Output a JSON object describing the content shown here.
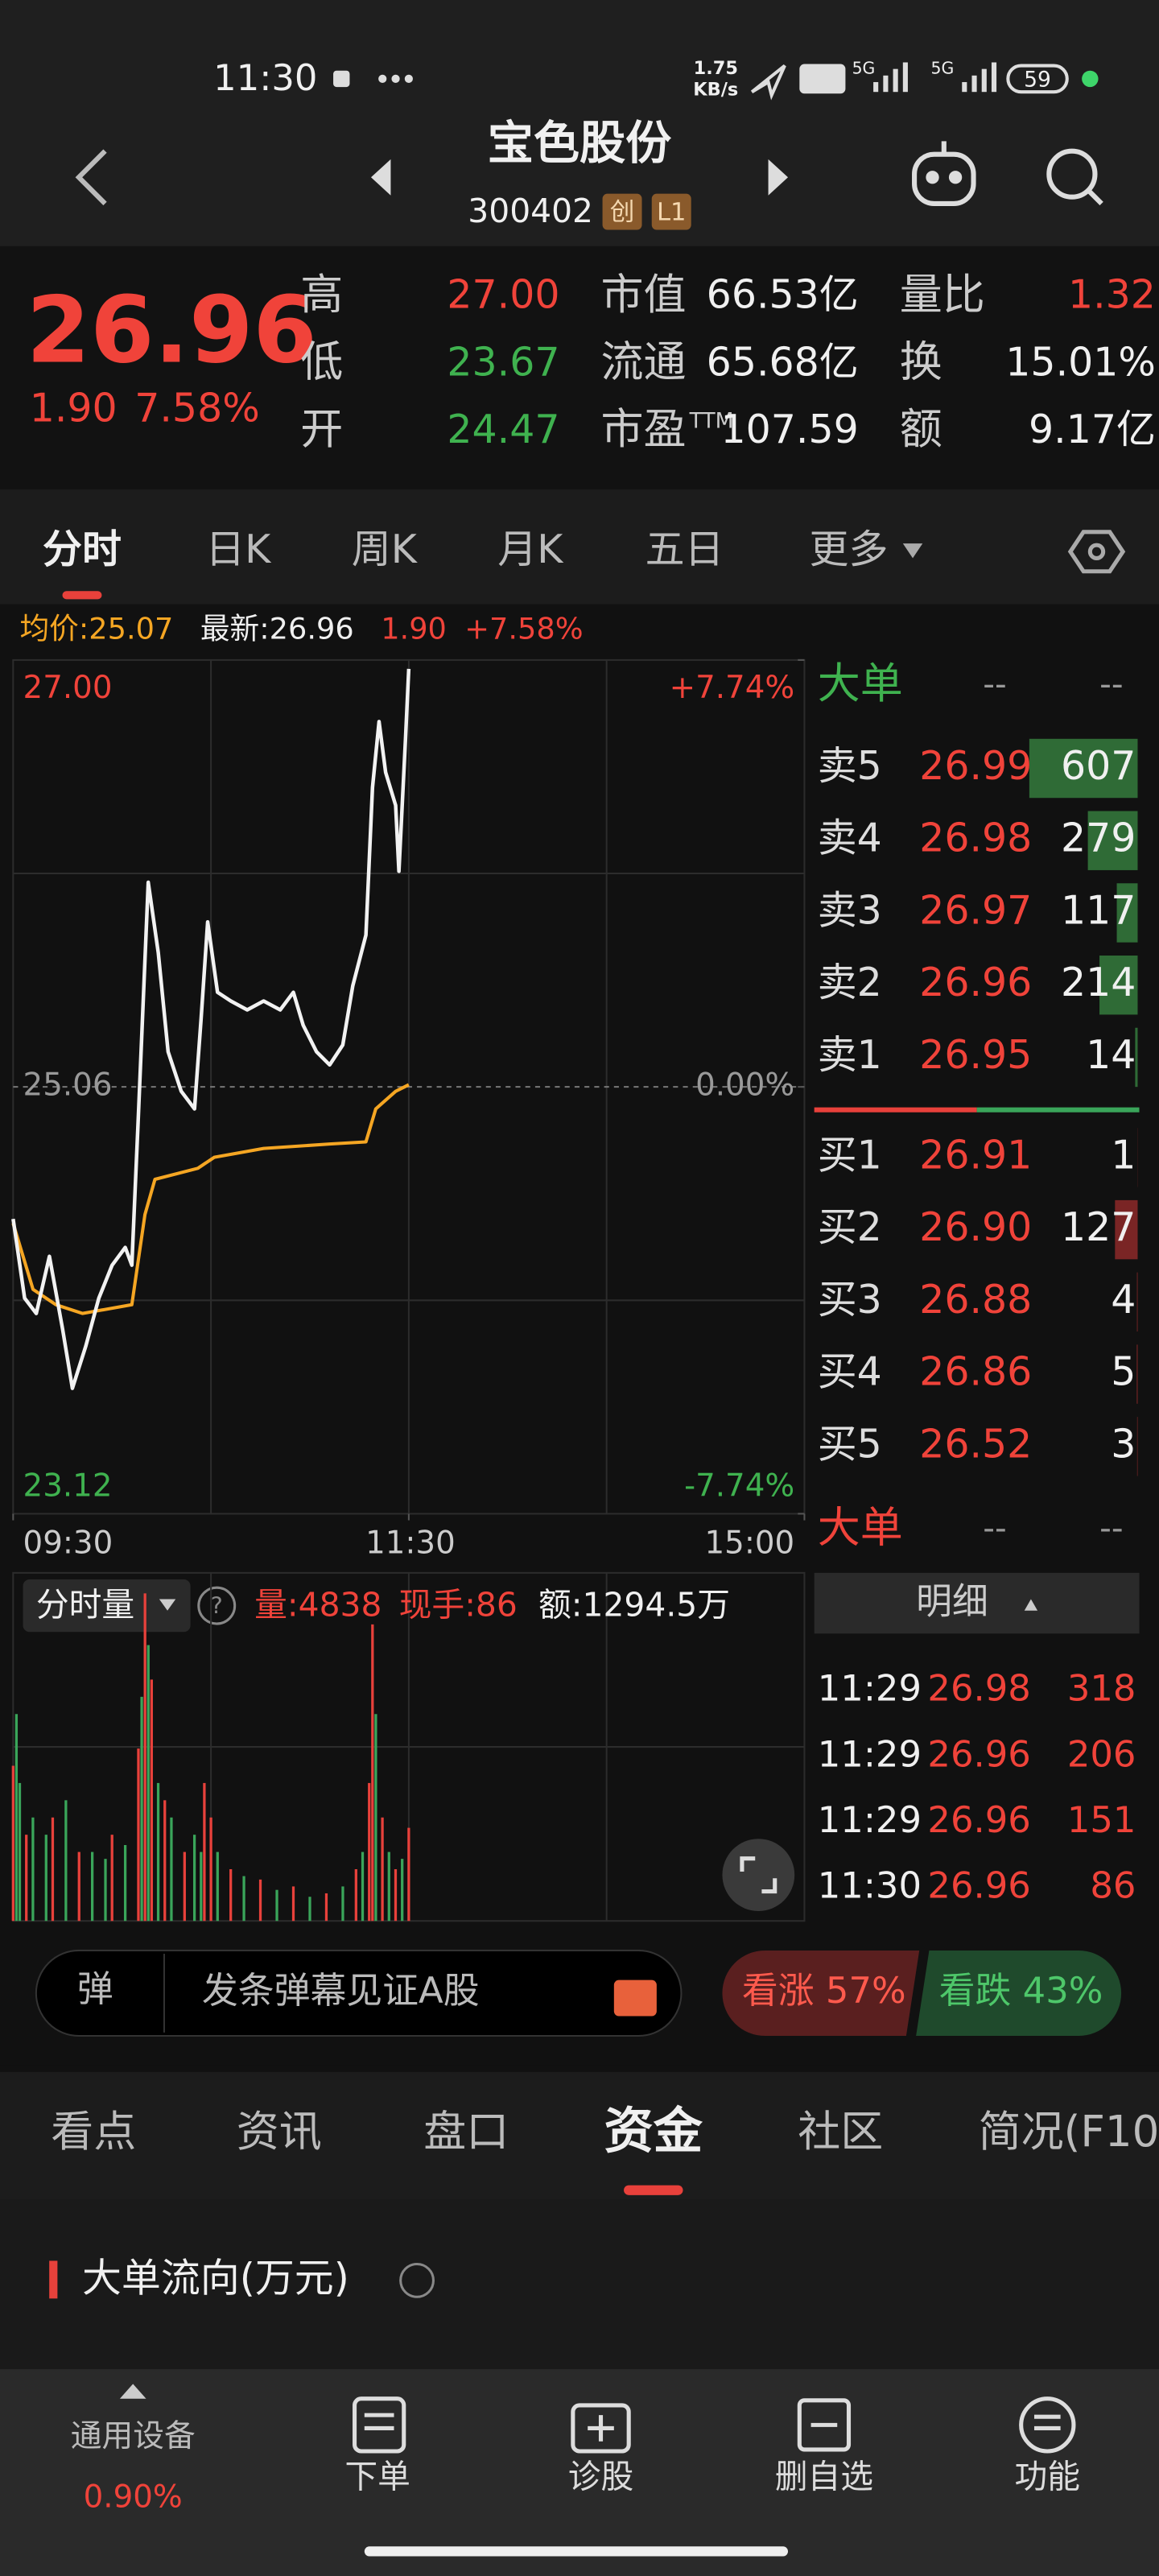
{
  "status_bar": {
    "time": "11:30",
    "speed_top": "1.75",
    "speed_bottom": "KB/s",
    "net1": "5G",
    "net2": "5G",
    "battery": "59"
  },
  "header": {
    "name": "宝色股份",
    "code": "300402",
    "badges": [
      "创",
      "L1"
    ]
  },
  "quote": {
    "price": "26.96",
    "change": "1.90",
    "change_pct": "7.58%",
    "stats": [
      {
        "label": "高",
        "value": "27.00"
      },
      {
        "label": "低",
        "value": "23.67"
      },
      {
        "label": "开",
        "value": "24.47"
      },
      {
        "label": "市值",
        "value": "66.53亿"
      },
      {
        "label": "流通",
        "value": "65.68亿"
      },
      {
        "label": "市盈",
        "sup": "TTM",
        "value": "107.59"
      },
      {
        "label": "量比",
        "value": "1.32"
      },
      {
        "label": "换",
        "value": "15.01%"
      },
      {
        "label": "额",
        "value": "9.17亿"
      }
    ]
  },
  "tabs": [
    "分时",
    "日K",
    "周K",
    "月K",
    "五日",
    "更多"
  ],
  "info_line": {
    "avg": "均价:25.07",
    "latest": "最新:26.96",
    "change": "1.90",
    "pct": "+7.58%"
  },
  "chart": {
    "type": "line",
    "xlim": [
      0,
      240
    ],
    "ylim": [
      23.12,
      27.0
    ],
    "pct_lim": [
      -7.74,
      7.74
    ],
    "yticks": [
      {
        "value": 27.0,
        "label": "27.00"
      },
      {
        "value": 25.06,
        "label": "25.06"
      },
      {
        "value": 23.12,
        "label": "23.12"
      }
    ],
    "pct_ticks": [
      {
        "value": 7.74,
        "label": "+7.74%"
      },
      {
        "value": 0,
        "label": "0.00%"
      },
      {
        "value": -7.74,
        "label": "-7.74%"
      }
    ],
    "xticks": [
      {
        "value": 0,
        "label": "09:30"
      },
      {
        "value": 120,
        "label": "11:30"
      },
      {
        "value": 240,
        "label": "15:00"
      }
    ],
    "price": {
      "color": "#f2f2f2",
      "x": [
        0,
        3.5,
        7,
        11,
        15,
        18,
        22,
        26,
        30,
        34,
        36,
        38,
        41,
        44,
        47,
        51,
        55,
        57,
        59,
        62,
        66,
        71,
        76,
        81,
        85,
        88,
        92,
        96,
        100,
        103,
        107,
        109,
        111,
        113,
        116,
        117,
        119,
        120
      ],
      "values": [
        24.46,
        24.1,
        24.03,
        24.29,
        23.96,
        23.69,
        23.88,
        24.1,
        24.25,
        24.33,
        24.25,
        24.93,
        25.99,
        25.67,
        25.22,
        25.04,
        24.96,
        25.37,
        25.81,
        25.49,
        25.45,
        25.41,
        25.45,
        25.41,
        25.49,
        25.34,
        25.22,
        25.16,
        25.25,
        25.52,
        25.75,
        26.42,
        26.72,
        26.49,
        26.34,
        26.04,
        26.64,
        26.96
      ]
    },
    "avg": {
      "color": "#f5a623",
      "x": [
        0,
        6,
        13,
        21,
        36,
        40,
        43,
        56,
        61,
        76,
        96,
        107,
        110,
        116,
        120
      ],
      "values": [
        24.44,
        24.14,
        24.07,
        24.03,
        24.07,
        24.48,
        24.64,
        24.69,
        24.74,
        24.78,
        24.8,
        24.81,
        24.96,
        25.04,
        25.07
      ]
    }
  },
  "volume": {
    "header": "分时量",
    "q": "?",
    "vol": "量:4838",
    "hand": "现手:86",
    "amount": "额:1294.5万",
    "ylim": [
      0,
      10000
    ],
    "up": {
      "color": "#e8413b",
      "x": [
        0,
        4,
        12,
        20,
        30,
        38,
        40,
        42,
        46,
        52,
        58,
        60,
        66,
        75,
        85,
        95,
        104,
        108,
        109,
        112,
        116,
        120
      ],
      "values": [
        4500,
        2500,
        3000,
        2000,
        2500,
        5000,
        9500,
        7000,
        3500,
        2000,
        4000,
        3000,
        1500,
        1200,
        1000,
        800,
        1500,
        4000,
        8600,
        3000,
        1500,
        2700
      ]
    },
    "down": {
      "color": "#3aa55a",
      "x": [
        1,
        2,
        6,
        10,
        16,
        24,
        28,
        34,
        39,
        41,
        44,
        48,
        55,
        57,
        62,
        70,
        80,
        90,
        100,
        106,
        110,
        114,
        118
      ],
      "values": [
        6000,
        4000,
        3000,
        2500,
        3500,
        2000,
        1800,
        2200,
        6500,
        8000,
        4000,
        3000,
        2500,
        2000,
        2000,
        1300,
        900,
        700,
        1000,
        2000,
        6000,
        2000,
        1800
      ]
    }
  },
  "book": {
    "title": "大单",
    "dash": "--",
    "sell": [
      {
        "label": "卖5",
        "price": "26.99",
        "vol": 607
      },
      {
        "label": "卖4",
        "price": "26.98",
        "vol": 279
      },
      {
        "label": "卖3",
        "price": "26.97",
        "vol": 117
      },
      {
        "label": "卖2",
        "price": "26.96",
        "vol": 214
      },
      {
        "label": "卖1",
        "price": "26.95",
        "vol": 14
      }
    ],
    "buy": [
      {
        "label": "买1",
        "price": "26.91",
        "vol": 1
      },
      {
        "label": "买2",
        "price": "26.90",
        "vol": 127
      },
      {
        "label": "买3",
        "price": "26.88",
        "vol": 4
      },
      {
        "label": "买4",
        "price": "26.86",
        "vol": 5
      },
      {
        "label": "买5",
        "price": "26.52",
        "vol": 3
      }
    ],
    "title2": "大单"
  },
  "trades": {
    "title": "明细",
    "rows": [
      {
        "time": "11:29",
        "price": "26.98",
        "vol": 318
      },
      {
        "time": "11:29",
        "price": "26.96",
        "vol": 206
      },
      {
        "time": "11:29",
        "price": "26.96",
        "vol": 151
      },
      {
        "time": "11:30",
        "price": "26.96",
        "vol": 86
      }
    ]
  },
  "danmu": {
    "icon": "弹",
    "text": "发条弹幕见证A股"
  },
  "sentiment": {
    "up": "看涨 57%",
    "down": "看跌 43%"
  },
  "section_tabs": [
    "看点",
    "资讯",
    "盘口",
    "资金",
    "社区",
    "简况(F10"
  ],
  "section": {
    "title": "大单流向(万元)"
  },
  "nav": {
    "sector": "通用设备",
    "sector_pct": "0.90%",
    "items": [
      "下单",
      "诊股",
      "删自选",
      "功能"
    ]
  }
}
